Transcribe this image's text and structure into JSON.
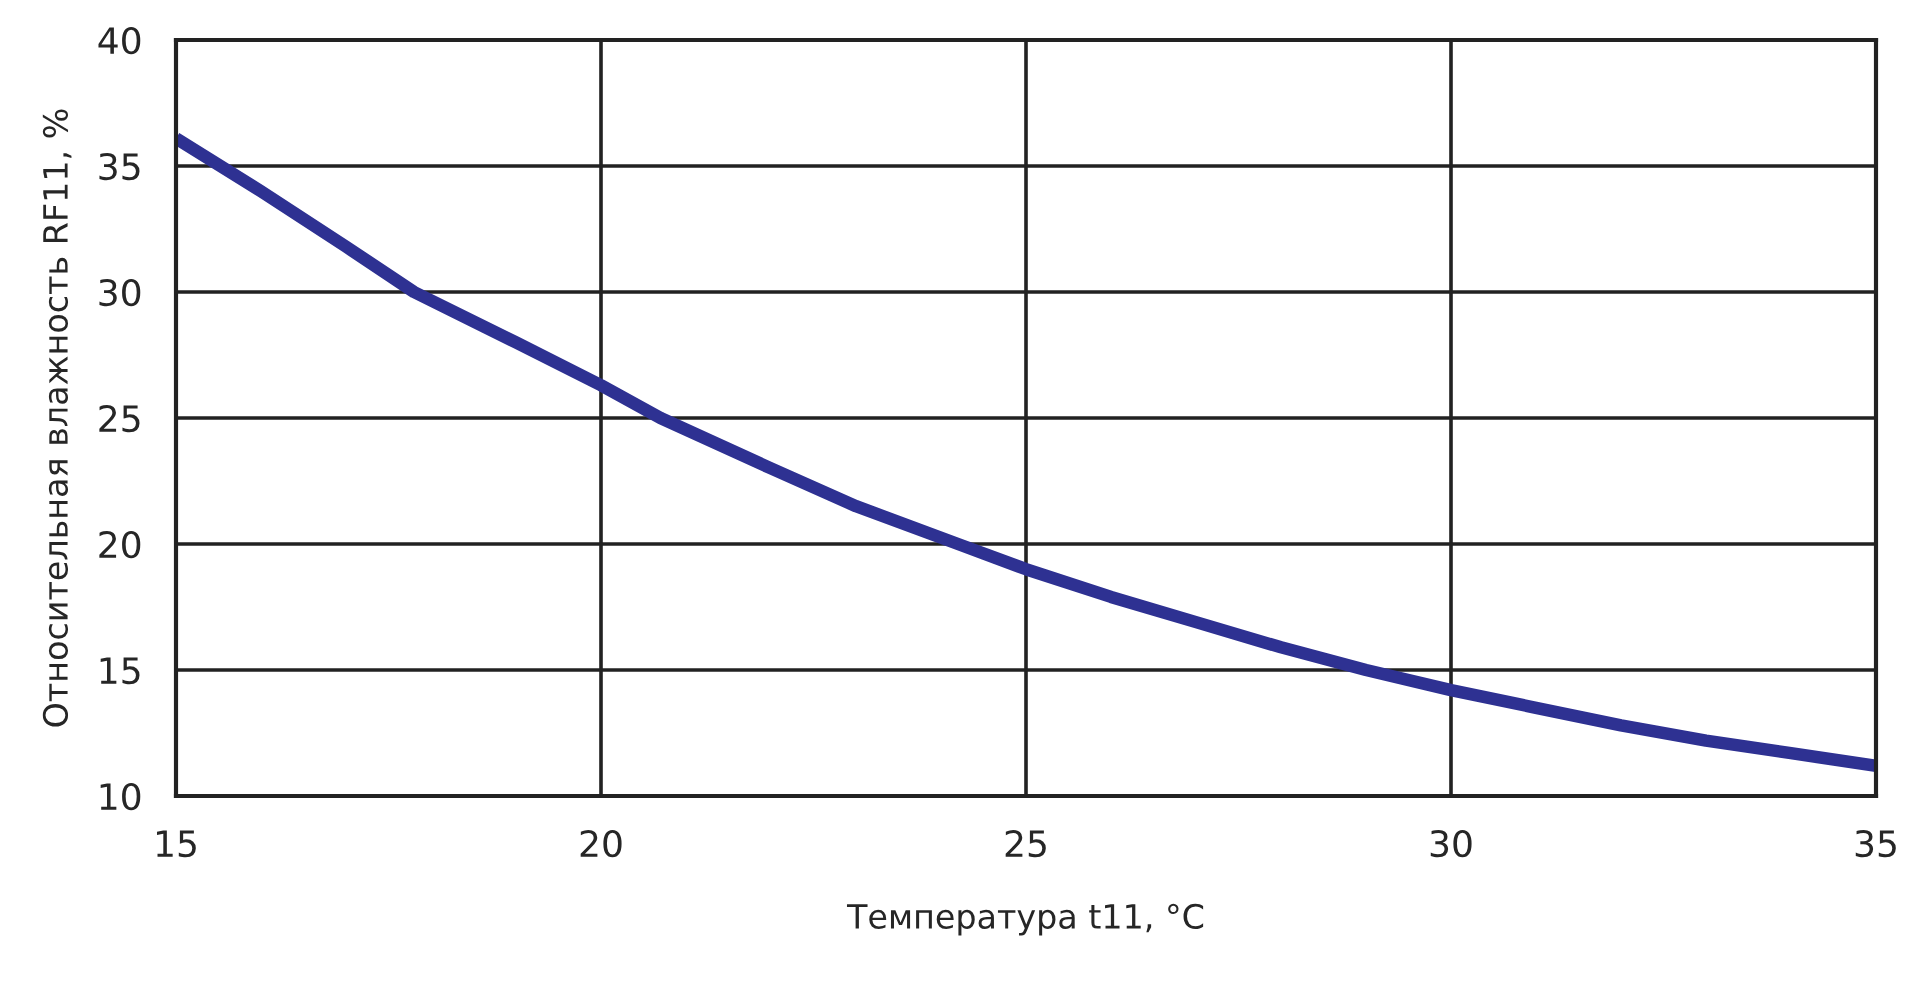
{
  "chart_data": {
    "type": "line",
    "xlabel": "Температура t11, °C",
    "ylabel": "Относительная влажность RF11, %",
    "x": [
      15,
      16,
      17,
      17.8,
      19,
      20,
      20.7,
      22,
      23,
      24.2,
      25,
      26,
      27,
      28,
      29,
      30,
      31,
      32,
      33,
      34,
      35
    ],
    "series": [
      {
        "color": "#2e3192",
        "values": [
          36.1,
          34.0,
          31.8,
          30.0,
          28.0,
          26.3,
          25.0,
          23.0,
          21.5,
          20.0,
          19.0,
          17.9,
          16.9,
          15.9,
          15.0,
          14.2,
          13.5,
          12.8,
          12.2,
          11.7,
          11.2
        ]
      }
    ],
    "xlim": [
      15,
      35
    ],
    "xticks": [
      15,
      20,
      25,
      30,
      35
    ],
    "ylim": [
      10,
      40
    ],
    "yticks": [
      10,
      15,
      20,
      25,
      30,
      35,
      40
    ],
    "grid": true,
    "legend": false,
    "marker": "none",
    "line_style": "solid"
  }
}
